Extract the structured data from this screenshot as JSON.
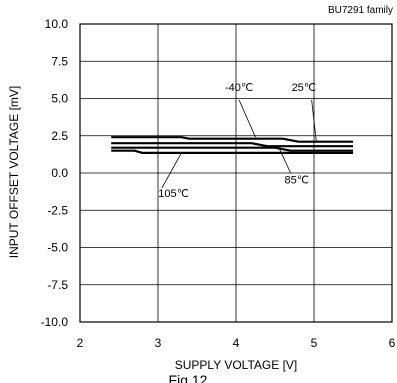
{
  "chart_data": {
    "type": "line",
    "title": "",
    "family_label": "BU7291 family",
    "figure_caption": "Fig.12",
    "xlabel": "SUPPLY VOLTAGE [V]",
    "ylabel": "INPUT OFFSET VOLTAGE [mV]",
    "xlim": [
      2,
      6
    ],
    "ylim": [
      -10,
      10
    ],
    "xticks": [
      2,
      3,
      4,
      5,
      6
    ],
    "xtick_labels": [
      "2",
      "3",
      "4",
      "5",
      "6"
    ],
    "yticks": [
      10,
      7.5,
      5,
      2.5,
      0,
      -2.5,
      -5,
      -7.5,
      -10
    ],
    "ytick_labels": [
      "10.0",
      "7.5",
      "5.0",
      "2.5",
      "0.0",
      "-2.5",
      "-5.0",
      "-7.5",
      "-10.0"
    ],
    "grid": true,
    "series": [
      {
        "name": "-40℃",
        "x": [
          2.4,
          3.3,
          3.4,
          4.6,
          4.8,
          5.5
        ],
        "y": [
          2.4,
          2.4,
          2.3,
          2.3,
          2.1,
          2.1
        ]
      },
      {
        "name": "25℃",
        "x": [
          2.4,
          4.2,
          4.4,
          5.5
        ],
        "y": [
          2.0,
          2.0,
          1.8,
          1.8
        ]
      },
      {
        "name": "85℃",
        "x": [
          2.4,
          4.5,
          4.7,
          5.5
        ],
        "y": [
          1.7,
          1.7,
          1.5,
          1.5
        ]
      },
      {
        "name": "105℃",
        "x": [
          2.4,
          2.7,
          2.8,
          5.5
        ],
        "y": [
          1.5,
          1.5,
          1.35,
          1.35
        ]
      }
    ],
    "annotations": [
      {
        "text": "-40℃",
        "x": 4.04,
        "y": 5.5
      },
      {
        "text": "25℃",
        "x": 4.87,
        "y": 5.5
      },
      {
        "text": "85℃",
        "x": 4.78,
        "y": -0.7
      },
      {
        "text": "105℃",
        "x": 3.2,
        "y": -1.6
      }
    ]
  }
}
